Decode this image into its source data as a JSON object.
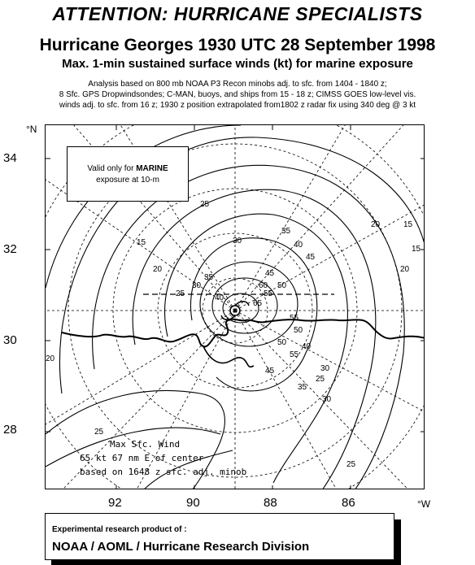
{
  "header": {
    "attention": "ATTENTION: HURRICANE SPECIALISTS",
    "title": "Hurricane Georges 1930 UTC 28 September 1998",
    "subtitle": "Max. 1-min sustained surface winds (kt) for marine exposure",
    "notes": [
      "Analysis based on 800 mb NOAA P3 Recon minobs adj. to sfc. from 1404 - 1840 z;",
      "8 Sfc. GPS Dropwindsondes;  C-MAN, buoys, and ships from 15 - 18 z; CIMSS GOES low-level vis.",
      "winds adj. to sfc. from 16 z; 1930 z position extrapolated from1802 z radar fix using 340 deg @ 3 kt"
    ]
  },
  "axes": {
    "lat_unit": "°N",
    "lon_unit": "°W",
    "lat_ticks": [
      "34",
      "32",
      "30",
      "28"
    ],
    "lon_ticks": [
      "92",
      "90",
      "88",
      "86"
    ]
  },
  "valid_box": {
    "line1_prefix": "Valid only for ",
    "line1_bold": "MARINE",
    "line2": "exposure at 10-m"
  },
  "max_wind": {
    "line1": "Max Sfc. Wind",
    "line2": "65 kt 67 nm E of center",
    "line3": "based on 1648 z sfc. adj. minob"
  },
  "contour_labels": [
    "15",
    "20",
    "25",
    "30",
    "35",
    "40",
    "45",
    "50",
    "55",
    "60",
    "65",
    "25",
    "20",
    "25",
    "30",
    "35",
    "40",
    "45",
    "50",
    "55",
    "30",
    "25",
    "20",
    "15",
    "15",
    "20",
    "25",
    "30",
    "35",
    "40",
    "45",
    "50",
    "55"
  ],
  "credit": {
    "line1": "Experimental research product of :",
    "line2": "NOAA / AOML / Hurricane Research Division"
  }
}
